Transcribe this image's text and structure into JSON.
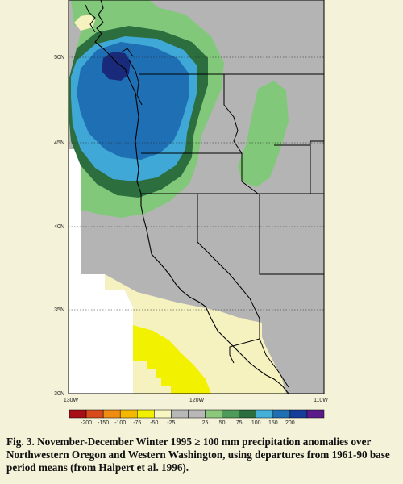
{
  "map": {
    "lat_labels": [
      "50N",
      "45N",
      "40N",
      "35N",
      "30N"
    ],
    "lon_labels": [
      "130W",
      "120W",
      "110W"
    ]
  },
  "legend": {
    "bins": [
      {
        "color": "#a50f15"
      },
      {
        "color": "#d84a1b"
      },
      {
        "color": "#f08c12"
      },
      {
        "color": "#f5b800"
      },
      {
        "color": "#f0f000"
      },
      {
        "color": "#f7f5c0"
      },
      {
        "color": "#b8b8b8"
      },
      {
        "color": "#b8b8b8"
      },
      {
        "color": "#8cc87a"
      },
      {
        "color": "#4e9a5a"
      },
      {
        "color": "#2d6e3e"
      },
      {
        "color": "#44b0d8"
      },
      {
        "color": "#1f6fb4"
      },
      {
        "color": "#173d9a"
      },
      {
        "color": "#5a1a8a"
      }
    ],
    "ticks": [
      "-200",
      "-150",
      "-100",
      "-75",
      "-50",
      "-25",
      "25",
      "50",
      "75",
      "100",
      "150",
      "200"
    ]
  },
  "colors": {
    "gray": "#b4b4b4",
    "pale_yellow": "#f5f2bf",
    "yellow": "#f2f200",
    "light_green": "#82c87a",
    "dark_green": "#2d6e3e",
    "light_blue": "#3fa8d6",
    "med_blue": "#1f6fb4",
    "dark_navy": "#1a2a7a",
    "ocean_white": "#ffffff",
    "background": "#f4f2d8"
  },
  "caption": "Fig. 3.  November-December Winter 1995 ≥ 100 mm precipitation anomalies over Northwestern Oregon and Western Washington, using departures from 1961-90 base period means (from Halpert et al. 1996)."
}
